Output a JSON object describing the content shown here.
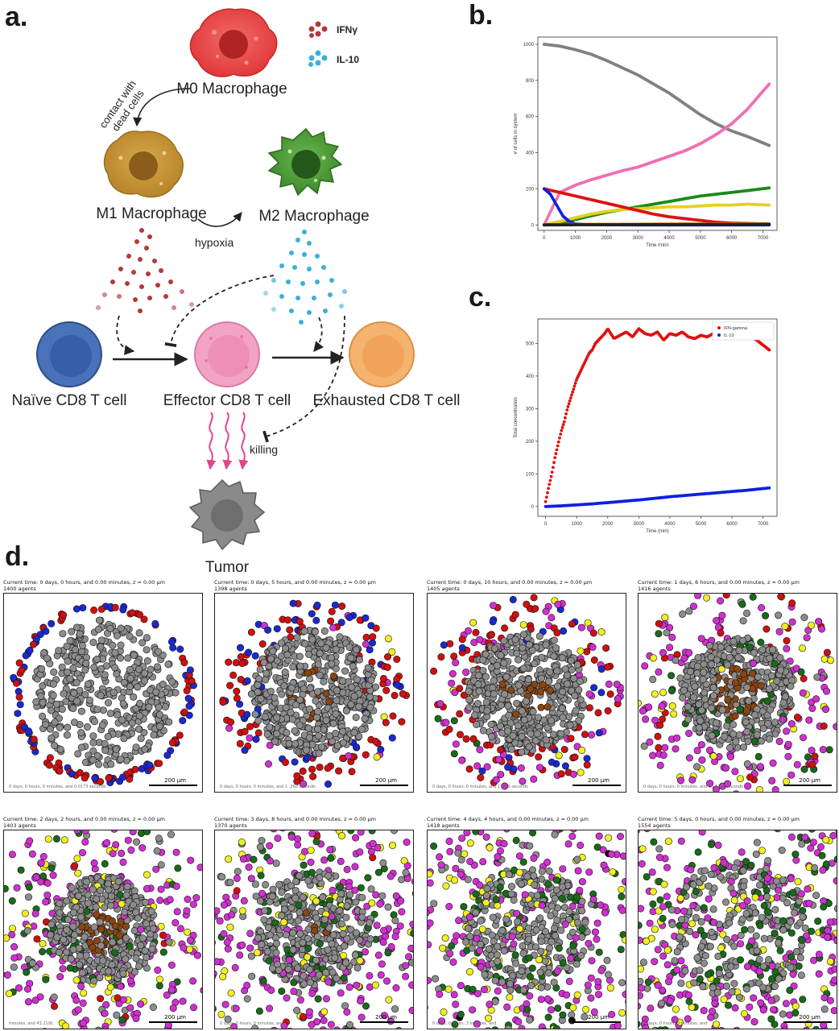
{
  "labels": {
    "a": "a.",
    "b": "b.",
    "c": "c.",
    "d": "d."
  },
  "diagram": {
    "m0": "M0 Macrophage",
    "m1": "M1 Macrophage",
    "m2": "M2 Macrophage",
    "contact_line1": "contact with",
    "contact_line2": "dead cells",
    "hypoxia": "hypoxia",
    "ifng": "IFNγ",
    "il10": "IL-10",
    "naive": "Naïve CD8 T cell",
    "effector": "Effector CD8 T cell",
    "exhausted": "Exhausted CD8 T cell",
    "killing": "killing",
    "tumor": "Tumor",
    "colors": {
      "m0": "#e84a4a",
      "m1": "#c8973a",
      "m2": "#4a9a3a",
      "naive": "#4a72b8",
      "effector": "#f2a3c3",
      "exhausted": "#f4b36e",
      "tumor": "#8a8a8a",
      "ifng": "#b23a3a",
      "il10": "#3ab0d8",
      "killing": "#e0448e"
    }
  },
  "chart_data": [
    {
      "type": "scatter",
      "id": "b",
      "title": "",
      "xlabel": "Time (min)",
      "ylabel": "# of cells in system",
      "xlim": [
        -200,
        7450
      ],
      "ylim": [
        -30,
        1040
      ],
      "xticks": [
        "0",
        "1000",
        "2000",
        "3000",
        "4000",
        "5000",
        "6000",
        "7000"
      ],
      "yticks": [
        "0",
        "200",
        "400",
        "600",
        "800",
        "1000"
      ],
      "grid": false,
      "series": [
        {
          "color": "#808080",
          "x": [
            0,
            500,
            1000,
            1500,
            2000,
            2500,
            3000,
            3500,
            4000,
            4500,
            5000,
            5500,
            6000,
            6500,
            7200
          ],
          "y": [
            1000,
            990,
            970,
            945,
            910,
            870,
            830,
            780,
            730,
            670,
            610,
            560,
            520,
            490,
            440
          ]
        },
        {
          "color": "#f06eb4",
          "x": [
            0,
            500,
            1000,
            1500,
            2000,
            2500,
            3000,
            3500,
            4000,
            4500,
            5000,
            5500,
            6000,
            6500,
            7200
          ],
          "y": [
            0,
            180,
            220,
            250,
            275,
            300,
            320,
            350,
            380,
            410,
            450,
            500,
            560,
            640,
            780
          ]
        },
        {
          "color": "#1a8a1a",
          "x": [
            0,
            500,
            1000,
            1500,
            2000,
            2500,
            3000,
            3500,
            4000,
            4500,
            5000,
            5500,
            6000,
            6500,
            7200
          ],
          "y": [
            0,
            10,
            30,
            50,
            70,
            85,
            100,
            115,
            130,
            145,
            160,
            170,
            180,
            190,
            205
          ]
        },
        {
          "color": "#e8d020",
          "x": [
            0,
            500,
            1000,
            1500,
            2000,
            2500,
            3000,
            3500,
            4000,
            4500,
            5000,
            5500,
            6000,
            6500,
            7200
          ],
          "y": [
            0,
            20,
            40,
            60,
            75,
            85,
            90,
            95,
            100,
            100,
            105,
            110,
            110,
            115,
            110
          ]
        },
        {
          "color": "#e01010",
          "x": [
            0,
            500,
            1000,
            1500,
            2000,
            2500,
            3000,
            3500,
            4000,
            4500,
            5000,
            5500,
            6000,
            6500,
            7200
          ],
          "y": [
            200,
            180,
            160,
            140,
            120,
            100,
            80,
            60,
            45,
            35,
            25,
            15,
            10,
            8,
            5
          ]
        },
        {
          "color": "#1020e0",
          "x": [
            0,
            200,
            400,
            600,
            800,
            1000,
            1500,
            2000,
            3000,
            4000,
            5000,
            6000,
            7200
          ],
          "y": [
            200,
            170,
            110,
            50,
            20,
            5,
            2,
            1,
            0,
            0,
            0,
            0,
            0
          ]
        },
        {
          "color": "#f08a10",
          "x": [
            0,
            1000,
            2000,
            3000,
            4000,
            5000,
            6000,
            7200
          ],
          "y": [
            2,
            3,
            4,
            4,
            5,
            5,
            6,
            6
          ]
        },
        {
          "color": "#222222",
          "x": [
            0,
            1000,
            2000,
            3000,
            4000,
            5000,
            6000,
            7200
          ],
          "y": [
            0,
            1,
            1,
            2,
            2,
            3,
            3,
            4
          ]
        }
      ]
    },
    {
      "type": "scatter",
      "id": "c",
      "title": "",
      "xlabel": "Time (min)",
      "ylabel": "Total concentration",
      "xlim": [
        -250,
        7450
      ],
      "ylim": [
        -30,
        575
      ],
      "xticks": [
        "0",
        "1000",
        "2000",
        "3000",
        "4000",
        "5000",
        "6000",
        "7000"
      ],
      "yticks": [
        "0",
        "100",
        "200",
        "300",
        "400",
        "500"
      ],
      "grid": false,
      "legend_position": "top-right",
      "series": [
        {
          "name": "IFN-gamma",
          "color": "#e01010",
          "x": [
            0,
            100,
            200,
            300,
            400,
            500,
            600,
            700,
            800,
            900,
            1000,
            1100,
            1200,
            1300,
            1400,
            1500,
            1600,
            1700,
            1800,
            1900,
            2000,
            2200,
            2400,
            2600,
            2800,
            3000,
            3200,
            3400,
            3600,
            3800,
            4000,
            4200,
            4400,
            4600,
            4800,
            5000,
            5200,
            5400,
            5600,
            5800,
            6000,
            6200,
            6400,
            6600,
            6800,
            7000,
            7200
          ],
          "y": [
            15,
            60,
            100,
            150,
            190,
            230,
            260,
            300,
            330,
            360,
            390,
            410,
            430,
            450,
            470,
            480,
            500,
            510,
            520,
            530,
            545,
            515,
            525,
            535,
            520,
            545,
            530,
            525,
            535,
            510,
            530,
            525,
            535,
            520,
            515,
            525,
            520,
            530,
            515,
            540,
            555,
            535,
            525,
            520,
            510,
            495,
            480
          ]
        },
        {
          "name": "IL-10",
          "color": "#1020e0",
          "x": [
            0,
            500,
            1000,
            1500,
            2000,
            2500,
            3000,
            3500,
            4000,
            4500,
            5000,
            5500,
            6000,
            6500,
            7200
          ],
          "y": [
            0,
            2,
            5,
            8,
            12,
            16,
            20,
            25,
            30,
            34,
            38,
            42,
            46,
            50,
            57
          ]
        }
      ]
    }
  ],
  "simulations": [
    {
      "time": "Current time: 0 days, 0 hours, and 0.00 minutes, z = 0.00 μm",
      "agents": "1400 agents",
      "footer": "0 days, 0 hours, 0 minutes, and 0.0173 seconds",
      "scale": "200 μm"
    },
    {
      "time": "Current time: 0 days, 5 hours, and 0.00 minutes, z = 0.00 μm",
      "agents": "1398 agents",
      "footer": "0 days, 0 hours, 0 minutes, and 1 .360 seconds",
      "scale": "200 μm"
    },
    {
      "time": "Current time: 0 days, 10 hours, and 0.00 minutes, z = 0.00 μm",
      "agents": "1405 agents",
      "footer": "0 days, 0 hours, 0 minutes, and 1 ,360 seconds",
      "scale": "200 μm"
    },
    {
      "time": "Current time: 1 days, 6 hours, and 0.00 minutes, z = 0.00 μm",
      "agents": "1416 agents",
      "footer": "0 days, 0 hours, 0 minutes, and 56.1384 seconds",
      "scale": "200 μm"
    },
    {
      "time": "Current time: 2 days, 2 hours, and 0.00 minutes, z = 0.00 μm",
      "agents": "1403 agents",
      "footer": "minutes, and 43.2191",
      "scale": "200 μm"
    },
    {
      "time": "Current time: 3 days, 8 hours, and 0.00 minutes, z = 0.00 μm",
      "agents": "1370 agents",
      "footer": "0 days, 0 hours, 0 minutes, and",
      "scale": "200 μm"
    },
    {
      "time": "Current time: 4 days, 4 hours, and 0.00 minutes, z = 0.00 μm",
      "agents": "1418 agents",
      "footer": "0 days, 0 hours, 3 minutes, and",
      "scale": "200 μm"
    },
    {
      "time": "Current time: 5 days, 0 hours, and 0.00 minutes, z = 0.00 μm",
      "agents": "1554 agents",
      "footer": "0 days, 0 hours, 0 minutes, and",
      "scale": "200 μm"
    }
  ],
  "sim_colors": {
    "tumor": "#8c8c8c",
    "necrotic": "#8b4513",
    "m0": "#d01010",
    "naive": "#1a2ad0",
    "effector": "#d030d0",
    "exhausted": "#f0f020",
    "m2": "#1a6a1a",
    "dead": "#111111"
  }
}
